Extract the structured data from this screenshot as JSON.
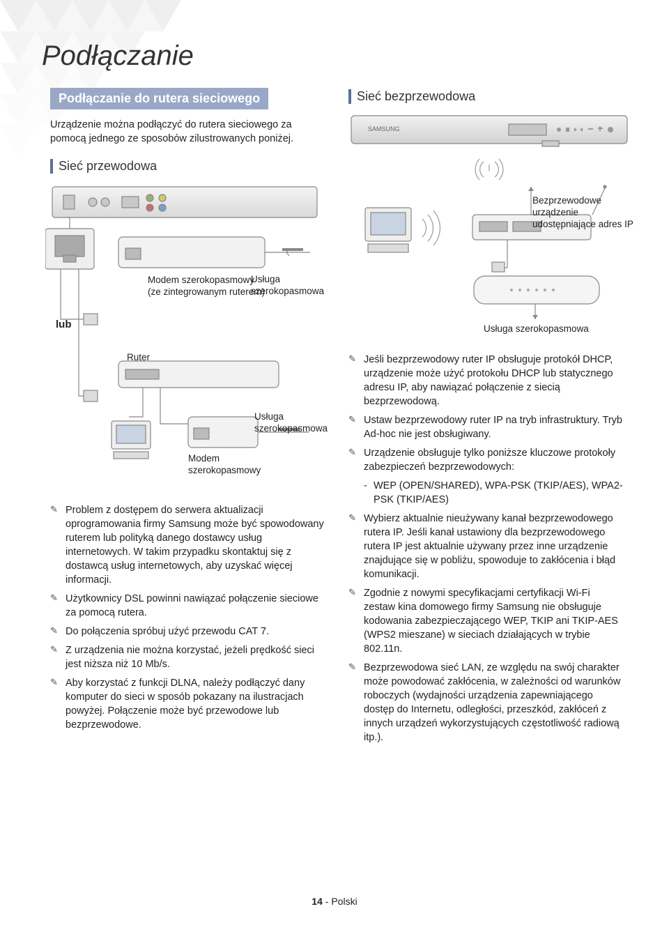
{
  "colors": {
    "section_bg": "#9aa8c7",
    "accent": "#5b6f9e",
    "triangle_light": "#f3f3f3",
    "triangle_mid": "#e7e7e7",
    "text": "#222222",
    "deviceFill": "#d8d8d8",
    "deviceStroke": "#888888"
  },
  "pageTitle": "Podłączanie",
  "sectionBox": "Podłączanie do rutera sieciowego",
  "intro": "Urządzenie można podłączyć do rutera sieciowego za pomocą jednego ze sposobów zilustrowanych poniżej.",
  "wiredHeading": "Sieć przewodowa",
  "wirelessHeading": "Sieć bezprzewodowa",
  "labels": {
    "modemRouter": "Modem szerokopasmowy\n(ze zintegrowanym ruterem)",
    "broadband": "Usługa\nszerokopasmowa",
    "or": "lub",
    "router": "Ruter",
    "modem": "Modem\nszerokopasmowy",
    "wirelessAp": "Bezprzewodowe\nurządzenie\nudostępniające adres IP",
    "broadbandSingle": "Usługa szerokopasmowa"
  },
  "leftBullets": [
    "Problem z dostępem do serwera aktualizacji oprogramowania firmy Samsung może być spowodowany ruterem lub polityką danego dostawcy usług internetowych. W takim przypadku skontaktuj się z dostawcą usług internetowych, aby uzyskać więcej informacji.",
    "Użytkownicy DSL powinni nawiązać połączenie sieciowe za pomocą rutera.",
    "Do połączenia spróbuj użyć przewodu CAT 7.",
    "Z urządzenia nie można korzystać, jeżeli prędkość sieci jest niższa niż 10 Mb/s.",
    "Aby korzystać z funkcji DLNA, należy podłączyć dany komputer do sieci w sposób pokazany na ilustracjach powyżej. Połączenie może być przewodowe lub bezprzewodowe."
  ],
  "rightBullets": [
    "Jeśli bezprzewodowy ruter IP obsługuje protokół DHCP, urządzenie może użyć protokołu DHCP lub statycznego adresu IP, aby nawiązać połączenie z siecią bezprzewodową.",
    "Ustaw bezprzewodowy ruter IP na tryb infrastruktury. Tryb Ad-hoc nie jest obsługiwany.",
    "Urządzenie obsługuje tylko poniższe kluczowe protokoły zabezpieczeń bezprzewodowych:",
    "Wybierz aktualnie nieużywany kanał bezprzewodowego rutera IP. Jeśli kanał ustawiony dla bezprzewodowego rutera IP jest aktualnie używany przez inne urządzenie znajdujące się w pobliżu, spowoduje to zakłócenia i błąd komunikacji.",
    "Zgodnie z nowymi specyfikacjami certyfikacji Wi-Fi zestaw kina domowego firmy Samsung nie obsługuje kodowania zabezpieczającego WEP, TKIP ani TKIP-AES (WPS2 mieszane) w sieciach działających w trybie 802.11n.",
    "Bezprzewodowa sieć LAN, ze względu na swój charakter może powodować zakłócenia, w zależności od warunków roboczych (wydajności urządzenia zapewniającego dostęp do Internetu, odległości, przeszkód, zakłóceń z innych urządzeń wykorzystujących częstotliwość radiową itp.)."
  ],
  "rightSubDash": "WEP (OPEN/SHARED), WPA-PSK (TKIP/AES), WPA2-PSK (TKIP/AES)",
  "footer": {
    "pageNum": "14",
    "lang": "Polski"
  }
}
